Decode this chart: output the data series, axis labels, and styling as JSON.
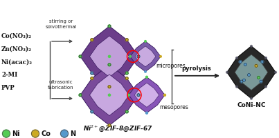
{
  "bg_color": "#ffffff",
  "reagents": [
    "Co(NO₃)₂",
    "Zn(NO₃)₂",
    "Ni(acac)₂",
    "2-MI",
    "PVP"
  ],
  "label_top": "stirring or\nsolvothermal",
  "label_bottom": "ultrasonic\nfabrication",
  "label_micropores": "micropores",
  "label_mesopores": "mesopores",
  "label_pyrolysis": "pyrolysis",
  "label_zif": "Ni²⁺@ZIF-8@ZIF-67",
  "label_product": "CoNi-NC",
  "legend_items": [
    {
      "label": "Ni",
      "color": "#55cc55"
    },
    {
      "label": "Co",
      "color": "#ccaa22"
    },
    {
      "label": "N",
      "color": "#5599cc"
    }
  ],
  "zif67_outer": "#6b3d8a",
  "zif67_inner": "#c09ed8",
  "zif8_outer": "#7a5aa8",
  "zif8_inner": "#c8aae0",
  "coni_shell": "#282828",
  "coni_face": "#7a9898"
}
